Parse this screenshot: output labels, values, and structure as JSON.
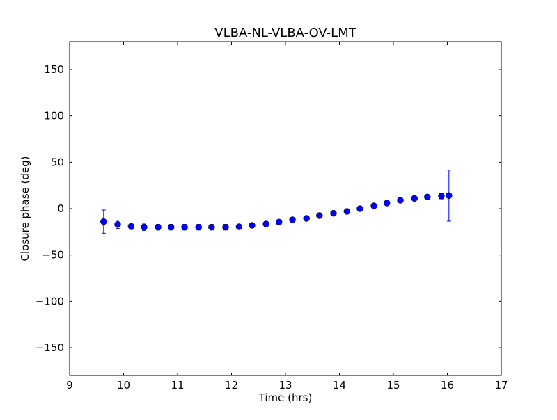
{
  "chart_data": {
    "type": "scatter",
    "title": "VLBA-NL-VLBA-OV-LMT",
    "xlabel": "Time (hrs)",
    "ylabel": "Closure phase (deg)",
    "xlim": [
      9,
      17
    ],
    "ylim": [
      -180,
      180
    ],
    "xticks": [
      9,
      10,
      11,
      12,
      13,
      14,
      15,
      16,
      17
    ],
    "yticks": [
      -150,
      -100,
      -50,
      0,
      50,
      100,
      150
    ],
    "ytick_labels": [
      "−150",
      "−100",
      "−50",
      "0",
      "50",
      "100",
      "150"
    ],
    "grid": false,
    "color": "#0000ff",
    "series": [
      {
        "name": "closure phase",
        "x": [
          9.63,
          9.89,
          10.14,
          10.38,
          10.64,
          10.88,
          11.13,
          11.39,
          11.63,
          11.89,
          12.14,
          12.38,
          12.64,
          12.88,
          13.13,
          13.39,
          13.63,
          13.89,
          14.14,
          14.38,
          14.64,
          14.88,
          15.13,
          15.39,
          15.63,
          15.89,
          16.03
        ],
        "y": [
          -14,
          -17,
          -19,
          -20,
          -20,
          -20,
          -20,
          -20,
          -20,
          -20,
          -19.5,
          -18,
          -16.5,
          -14.5,
          -12,
          -10.5,
          -7.5,
          -5,
          -3,
          0,
          3,
          6,
          9,
          11,
          12.5,
          13.5,
          14
        ],
        "yerr": [
          12.5,
          4.5,
          3.5,
          3.5,
          3,
          3,
          3,
          3,
          3,
          3,
          2.5,
          2.5,
          2.5,
          2.5,
          2,
          2,
          2,
          2,
          2,
          2,
          2,
          2,
          2,
          2,
          2,
          3,
          27.5
        ]
      }
    ]
  }
}
